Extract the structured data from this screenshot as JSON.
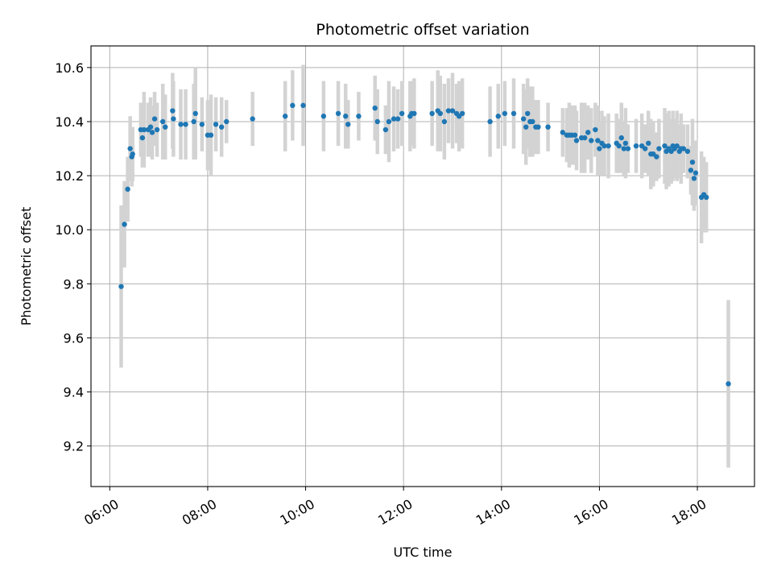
{
  "chart_data": {
    "type": "scatter",
    "title": "Photometric offset variation",
    "xlabel": "UTC time",
    "ylabel": "Photometric offset",
    "xlim": [
      "05:37",
      "19:10"
    ],
    "ylim": [
      9.05,
      10.68
    ],
    "x_ticks": [
      "06:00",
      "08:00",
      "10:00",
      "12:00",
      "14:00",
      "16:00",
      "18:00"
    ],
    "y_ticks": [
      "9.2",
      "9.4",
      "9.6",
      "9.8",
      "10.0",
      "10.2",
      "10.4",
      "10.6"
    ],
    "grid": true,
    "colors": {
      "point": "#1f77b4",
      "errorbar": "#d3d3d3",
      "grid": "#b0b0b0"
    },
    "series": [
      {
        "columns": [
          "time",
          "value",
          "error"
        ],
        "points": [
          [
            "06:14",
            9.79,
            0.3
          ],
          [
            "06:18",
            10.02,
            0.16
          ],
          [
            "06:22",
            10.15,
            0.12
          ],
          [
            "06:25",
            10.3,
            0.12
          ],
          [
            "06:27",
            10.27,
            0.11
          ],
          [
            "06:28",
            10.28,
            0.1
          ],
          [
            "06:38",
            10.37,
            0.1
          ],
          [
            "06:40",
            10.34,
            0.11
          ],
          [
            "06:42",
            10.37,
            0.14
          ],
          [
            "06:47",
            10.37,
            0.1
          ],
          [
            "06:50",
            10.38,
            0.11
          ],
          [
            "06:52",
            10.36,
            0.1
          ],
          [
            "06:55",
            10.41,
            0.1
          ],
          [
            "06:58",
            10.37,
            0.1
          ],
          [
            "07:05",
            10.4,
            0.14
          ],
          [
            "07:08",
            10.38,
            0.12
          ],
          [
            "07:17",
            10.44,
            0.14
          ],
          [
            "07:18",
            10.41,
            0.14
          ],
          [
            "07:27",
            10.39,
            0.13
          ],
          [
            "07:33",
            10.39,
            0.13
          ],
          [
            "07:43",
            10.4,
            0.14
          ],
          [
            "07:45",
            10.43,
            0.17
          ],
          [
            "07:53",
            10.39,
            0.1
          ],
          [
            "08:00",
            10.35,
            0.13
          ],
          [
            "08:04",
            10.35,
            0.15
          ],
          [
            "08:10",
            10.39,
            0.1
          ],
          [
            "08:17",
            10.38,
            0.11
          ],
          [
            "08:23",
            10.4,
            0.08
          ],
          [
            "08:55",
            10.41,
            0.1
          ],
          [
            "09:35",
            10.42,
            0.13
          ],
          [
            "09:44",
            10.46,
            0.13
          ],
          [
            "09:57",
            10.46,
            0.15
          ],
          [
            "10:22",
            10.42,
            0.13
          ],
          [
            "10:40",
            10.43,
            0.12
          ],
          [
            "10:49",
            10.42,
            0.12
          ],
          [
            "10:52",
            10.39,
            0.09
          ],
          [
            "11:05",
            10.42,
            0.09
          ],
          [
            "11:25",
            10.45,
            0.12
          ],
          [
            "11:28",
            10.4,
            0.12
          ],
          [
            "11:38",
            10.37,
            0.09
          ],
          [
            "11:42",
            10.4,
            0.15
          ],
          [
            "11:48",
            10.41,
            0.12
          ],
          [
            "11:53",
            10.41,
            0.11
          ],
          [
            "11:58",
            10.43,
            0.12
          ],
          [
            "12:08",
            10.42,
            0.13
          ],
          [
            "12:10",
            10.43,
            0.12
          ],
          [
            "12:13",
            10.43,
            0.13
          ],
          [
            "12:35",
            10.43,
            0.12
          ],
          [
            "12:42",
            10.44,
            0.15
          ],
          [
            "12:45",
            10.43,
            0.14
          ],
          [
            "12:50",
            10.4,
            0.14
          ],
          [
            "12:55",
            10.44,
            0.12
          ],
          [
            "13:00",
            10.44,
            0.14
          ],
          [
            "13:05",
            10.43,
            0.11
          ],
          [
            "13:08",
            10.42,
            0.13
          ],
          [
            "13:12",
            10.43,
            0.13
          ],
          [
            "13:46",
            10.4,
            0.13
          ],
          [
            "13:56",
            10.42,
            0.12
          ],
          [
            "14:04",
            10.43,
            0.12
          ],
          [
            "14:15",
            10.43,
            0.13
          ],
          [
            "14:27",
            10.41,
            0.13
          ],
          [
            "14:30",
            10.38,
            0.14
          ],
          [
            "14:32",
            10.43,
            0.13
          ],
          [
            "14:35",
            10.4,
            0.13
          ],
          [
            "14:38",
            10.4,
            0.13
          ],
          [
            "14:42",
            10.38,
            0.1
          ],
          [
            "14:45",
            10.38,
            0.1
          ],
          [
            "14:57",
            10.38,
            0.09
          ],
          [
            "15:15",
            10.36,
            0.09
          ],
          [
            "15:20",
            10.35,
            0.1
          ],
          [
            "15:23",
            10.35,
            0.12
          ],
          [
            "15:26",
            10.35,
            0.11
          ],
          [
            "15:30",
            10.35,
            0.11
          ],
          [
            "15:32",
            10.33,
            0.11
          ],
          [
            "15:38",
            10.34,
            0.13
          ],
          [
            "15:42",
            10.34,
            0.13
          ],
          [
            "15:46",
            10.36,
            0.1
          ],
          [
            "15:50",
            10.33,
            0.12
          ],
          [
            "15:55",
            10.37,
            0.1
          ],
          [
            "15:58",
            10.33,
            0.13
          ],
          [
            "16:00",
            10.3,
            0.1
          ],
          [
            "16:03",
            10.32,
            0.12
          ],
          [
            "16:06",
            10.31,
            0.11
          ],
          [
            "16:11",
            10.31,
            0.12
          ],
          [
            "16:21",
            10.32,
            0.11
          ],
          [
            "16:24",
            10.31,
            0.1
          ],
          [
            "16:27",
            10.34,
            0.13
          ],
          [
            "16:30",
            10.3,
            0.1
          ],
          [
            "16:32",
            10.32,
            0.13
          ],
          [
            "16:35",
            10.3,
            0.09
          ],
          [
            "16:45",
            10.31,
            0.1
          ],
          [
            "16:52",
            10.31,
            0.12
          ],
          [
            "16:56",
            10.3,
            0.09
          ],
          [
            "17:00",
            10.32,
            0.12
          ],
          [
            "17:03",
            10.28,
            0.13
          ],
          [
            "17:06",
            10.28,
            0.12
          ],
          [
            "17:10",
            10.27,
            0.09
          ],
          [
            "17:13",
            10.3,
            0.11
          ],
          [
            "17:20",
            10.31,
            0.14
          ],
          [
            "17:22",
            10.29,
            0.14
          ],
          [
            "17:25",
            10.3,
            0.14
          ],
          [
            "17:28",
            10.29,
            0.12
          ],
          [
            "17:30",
            10.31,
            0.13
          ],
          [
            "17:32",
            10.3,
            0.11
          ],
          [
            "17:35",
            10.31,
            0.13
          ],
          [
            "17:38",
            10.29,
            0.1
          ],
          [
            "17:40",
            10.3,
            0.13
          ],
          [
            "17:43",
            10.3,
            0.09
          ],
          [
            "17:48",
            10.29,
            0.1
          ],
          [
            "17:52",
            10.22,
            0.09
          ],
          [
            "17:54",
            10.25,
            0.16
          ],
          [
            "17:56",
            10.19,
            0.12
          ],
          [
            "17:58",
            10.21,
            0.12
          ],
          [
            "18:05",
            10.12,
            0.17
          ],
          [
            "18:08",
            10.13,
            0.14
          ],
          [
            "18:11",
            10.12,
            0.13
          ],
          [
            "18:38",
            9.43,
            0.31
          ]
        ]
      }
    ]
  }
}
